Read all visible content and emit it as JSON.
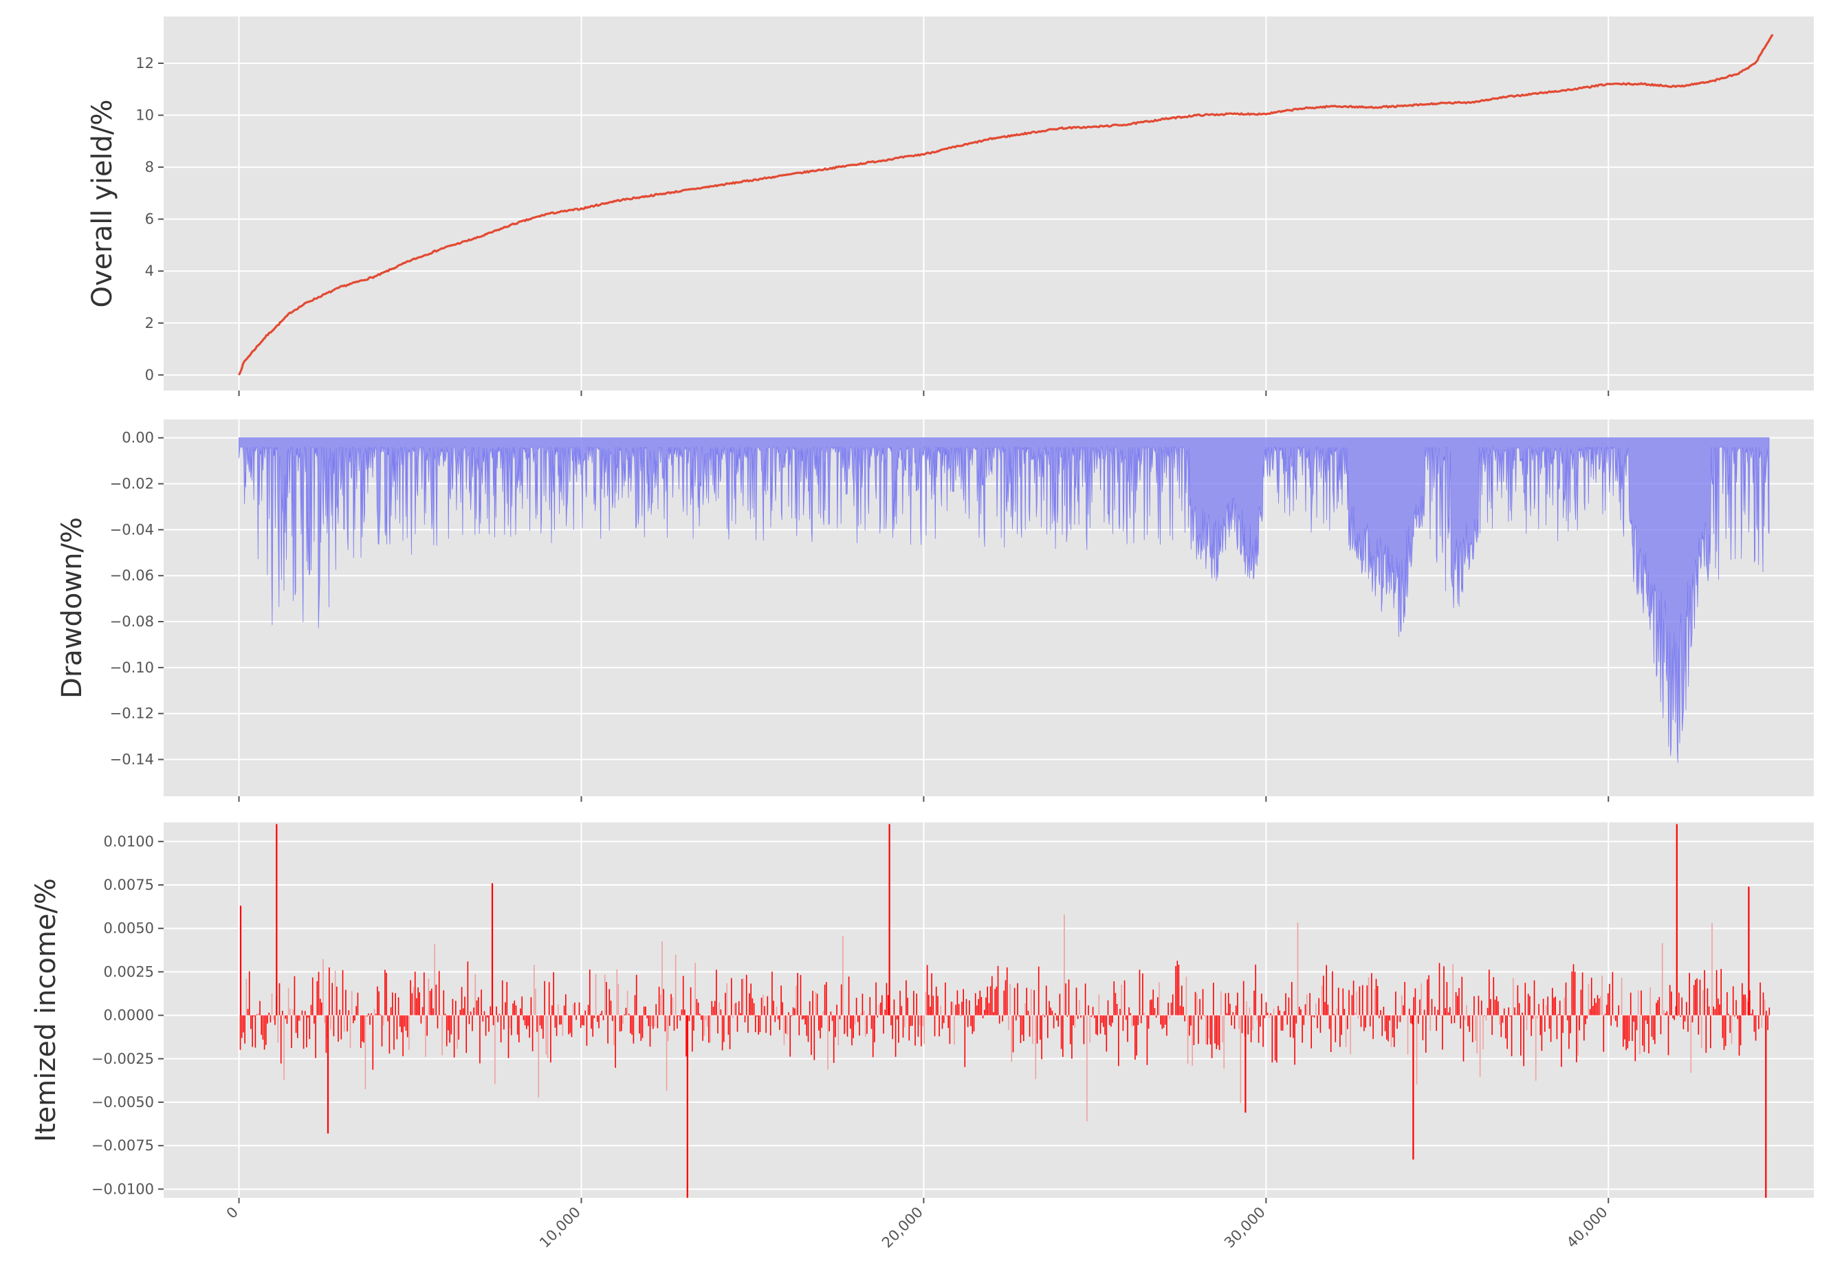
{
  "chart_data": [
    {
      "type": "line",
      "ylabel": "Overall yield/%",
      "xlim": [
        -2200,
        46000
      ],
      "ylim": [
        -0.6,
        13.8
      ],
      "yticks": [
        "0",
        "2",
        "4",
        "6",
        "8",
        "10",
        "12"
      ],
      "grid": true,
      "series": [
        {
          "color": "#e24a33",
          "x": [
            0,
            150,
            400,
            800,
            1200,
            1500,
            2000,
            2500,
            3000,
            3500,
            4000,
            5000,
            6000,
            7000,
            8000,
            9000,
            10000,
            11000,
            12000,
            13000,
            14000,
            15000,
            16000,
            17000,
            18000,
            19000,
            20000,
            21000,
            22000,
            23000,
            24000,
            25000,
            26000,
            27000,
            28000,
            29000,
            30000,
            31000,
            32000,
            33000,
            34000,
            35000,
            36000,
            37000,
            38000,
            39000,
            40000,
            41000,
            42000,
            43000,
            43800,
            44300,
            44600,
            44800
          ],
          "y": [
            0,
            0.5,
            0.9,
            1.5,
            2.0,
            2.4,
            2.8,
            3.1,
            3.4,
            3.6,
            3.8,
            4.4,
            4.9,
            5.3,
            5.8,
            6.2,
            6.4,
            6.7,
            6.9,
            7.1,
            7.3,
            7.5,
            7.7,
            7.9,
            8.1,
            8.3,
            8.5,
            8.8,
            9.1,
            9.3,
            9.5,
            9.55,
            9.65,
            9.85,
            10.0,
            10.05,
            10.05,
            10.25,
            10.35,
            10.3,
            10.35,
            10.45,
            10.5,
            10.7,
            10.85,
            11.0,
            11.2,
            11.2,
            11.1,
            11.3,
            11.6,
            12.0,
            12.7,
            13.1
          ]
        }
      ]
    },
    {
      "type": "area",
      "ylabel": "Drawdown/%",
      "xlim": [
        -2200,
        46000
      ],
      "ylim": [
        -0.156,
        0.008
      ],
      "yticks": [
        "0.00",
        "−0.02",
        "−0.04",
        "−0.06",
        "−0.08",
        "−0.10",
        "−0.12",
        "−0.14"
      ],
      "grid": true,
      "series": [
        {
          "color": "#7b7bf0",
          "x": [
            0,
            600,
            1800,
            3100,
            4200,
            11300,
            27800,
            28600,
            29000,
            29600,
            30100,
            31000,
            32300,
            33000,
            33900,
            34400,
            35600,
            36200,
            39000,
            40200,
            41000,
            42000,
            42700,
            43500,
            44700
          ],
          "y": [
            -0.03,
            -0.074,
            -0.098,
            -0.06,
            -0.052,
            -0.043,
            -0.05,
            -0.065,
            -0.045,
            -0.067,
            -0.03,
            -0.04,
            -0.045,
            -0.065,
            -0.096,
            -0.04,
            -0.078,
            -0.045,
            -0.045,
            -0.03,
            -0.08,
            -0.153,
            -0.065,
            -0.06,
            -0.065
          ]
        }
      ]
    },
    {
      "type": "bar",
      "ylabel": "Itemized income/%",
      "xlim": [
        -2200,
        46000
      ],
      "ylim": [
        -0.0105,
        0.0111
      ],
      "yticks": [
        "0.0100",
        "0.0075",
        "0.0050",
        "0.0025",
        "0.0000",
        "−0.0025",
        "−0.0050",
        "−0.0075",
        "−0.0100"
      ],
      "xticks": [
        "0",
        "10,000",
        "20,000",
        "30,000",
        "40,000"
      ],
      "grid": true,
      "series": [
        {
          "color": "#ff0000",
          "x": [
            50,
            1100,
            13100,
            19000,
            42000,
            44600,
            2600,
            34300,
            29400,
            7400,
            44100
          ],
          "y": [
            0.0063,
            0.011,
            -0.0105,
            0.011,
            0.011,
            -0.0105,
            -0.0068,
            -0.0083,
            -0.0056,
            0.0076,
            0.0074
          ]
        }
      ]
    }
  ]
}
